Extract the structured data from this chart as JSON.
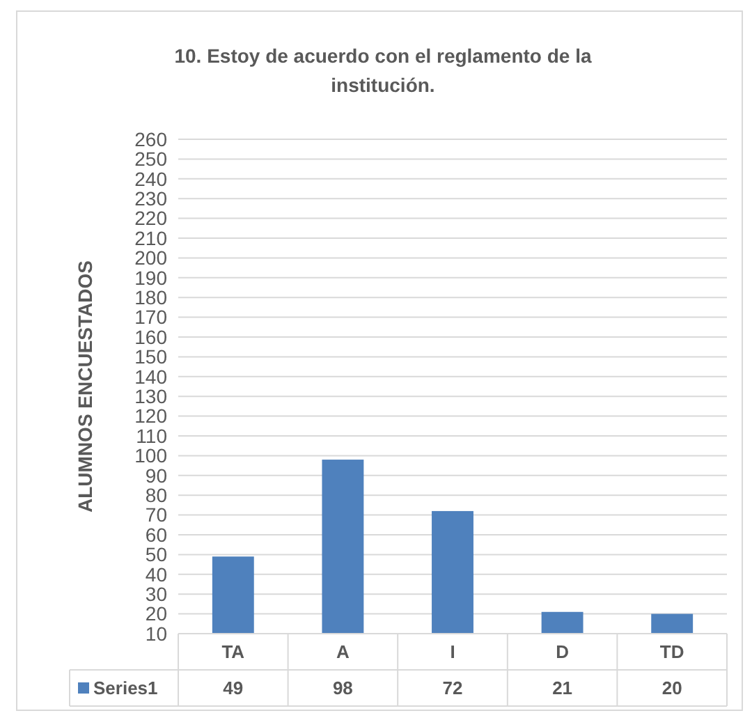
{
  "chart_data": {
    "type": "bar",
    "title": "10. Estoy de acuerdo con el reglamento de la institución.",
    "ylabel": "ALUMNOS ENCUESTADOS",
    "categories": [
      "TA",
      "A",
      "I",
      "D",
      "TD"
    ],
    "series": [
      {
        "name": "Series1",
        "color": "#4f81bd",
        "values": [
          49,
          98,
          72,
          21,
          20
        ]
      }
    ],
    "ylim": [
      10,
      260
    ],
    "yticks": [
      10,
      20,
      30,
      40,
      50,
      60,
      70,
      80,
      90,
      100,
      110,
      120,
      130,
      140,
      150,
      160,
      170,
      180,
      190,
      200,
      210,
      220,
      230,
      240,
      250,
      260
    ],
    "grid": "y",
    "data_labels": true
  }
}
